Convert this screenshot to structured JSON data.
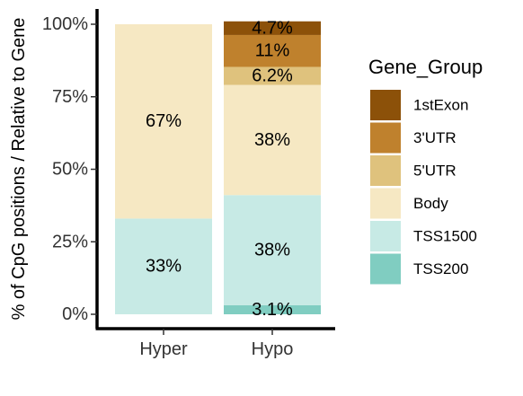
{
  "chart_data": {
    "type": "bar",
    "stacked": true,
    "normalized": true,
    "categories": [
      "Hyper",
      "Hypo"
    ],
    "xlabel": "",
    "ylabel": "% of CpG positions / Relative to Gene",
    "ylim": [
      0,
      1
    ],
    "y_ticks": [
      "0%",
      "25%",
      "50%",
      "75%",
      "100%"
    ],
    "legend_title": "Gene_Group",
    "legend_position": "right",
    "series": [
      {
        "name": "1stExon",
        "color": "#8c5109",
        "values": [
          0,
          0.047
        ],
        "labels": [
          "",
          "4.7%"
        ]
      },
      {
        "name": "3'UTR",
        "color": "#bf812d",
        "values": [
          0,
          0.11
        ],
        "labels": [
          "",
          "11%"
        ]
      },
      {
        "name": "5'UTR",
        "color": "#dfc27d",
        "values": [
          0,
          0.062
        ],
        "labels": [
          "",
          "6.2%"
        ]
      },
      {
        "name": "Body",
        "color": "#f6e8c3",
        "values": [
          0.67,
          0.38
        ],
        "labels": [
          "67%",
          "38%"
        ]
      },
      {
        "name": "TSS1500",
        "color": "#c7eae5",
        "values": [
          0.33,
          0.38
        ],
        "labels": [
          "33%",
          "38%"
        ]
      },
      {
        "name": "TSS200",
        "color": "#80cdc1",
        "values": [
          0,
          0.031
        ],
        "labels": [
          "",
          "3.1%"
        ]
      }
    ]
  }
}
